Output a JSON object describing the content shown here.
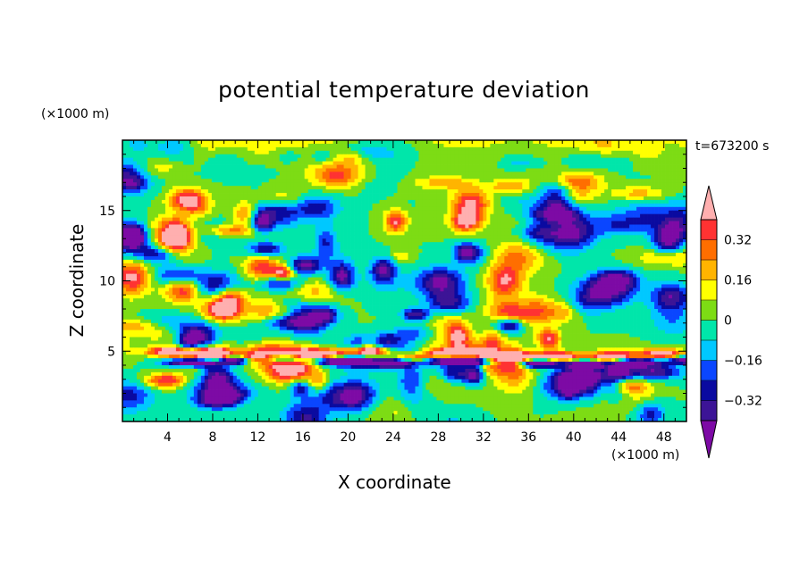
{
  "chart_data": {
    "type": "heatmap",
    "title": "potential temperature deviation",
    "xlabel": "X coordinate",
    "ylabel": "Z coordinate",
    "x_unit": "(×1000 m)",
    "z_unit": "(×1000 m)",
    "time_label": "t=673200 s",
    "xlim": [
      0,
      50
    ],
    "ylim": [
      0,
      20
    ],
    "x_ticks": [
      4,
      8,
      12,
      16,
      20,
      24,
      28,
      32,
      36,
      40,
      44,
      48
    ],
    "y_ticks": [
      5,
      10,
      15
    ],
    "colorbar": {
      "levels": [
        -0.4,
        -0.32,
        -0.24,
        -0.16,
        -0.08,
        0,
        0.08,
        0.16,
        0.24,
        0.32,
        0.4
      ],
      "labeled_levels": [
        "0.32",
        "0.16",
        "0",
        "−0.16",
        "−0.32"
      ],
      "labeled_values": [
        0.32,
        0.16,
        0,
        -0.16,
        -0.32
      ],
      "colors": [
        "#7d0aa5",
        "#3c1496",
        "#0a0aa0",
        "#0a46ff",
        "#00c8ff",
        "#00e6aa",
        "#7ddc14",
        "#ffff00",
        "#ffb400",
        "#ff6e00",
        "#ff3232",
        "#ffafaf"
      ],
      "extend": "both"
    }
  }
}
